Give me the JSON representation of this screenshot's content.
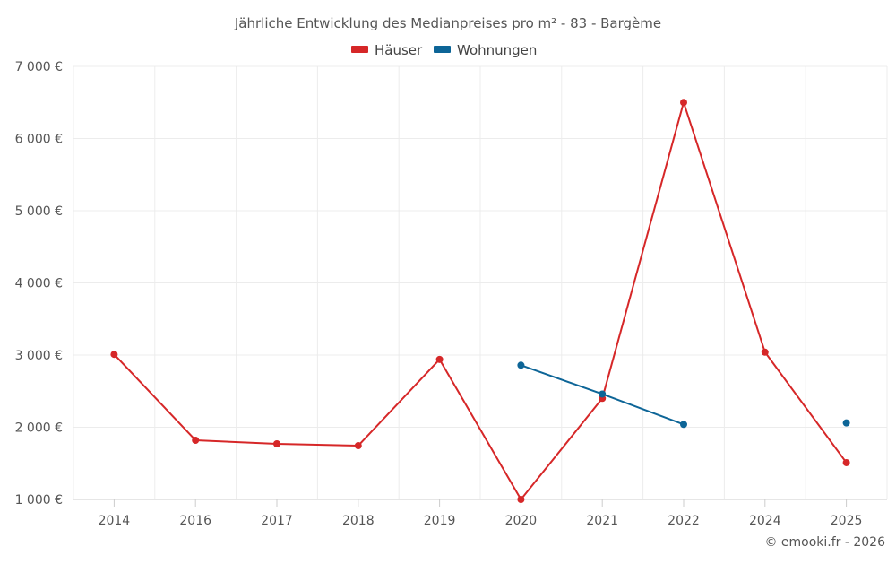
{
  "chart_data": {
    "type": "line",
    "title": "Jährliche Entwicklung des Medianpreises pro m² - 83 - Bargème",
    "categories": [
      "2014",
      "2016",
      "2017",
      "2018",
      "2019",
      "2020",
      "2021",
      "2022",
      "2024",
      "2025"
    ],
    "series": [
      {
        "name": "Häuser",
        "color": "#d62728",
        "values": [
          3010,
          1820,
          1770,
          1745,
          2940,
          1000,
          2400,
          6500,
          3040,
          1510
        ]
      },
      {
        "name": "Wohnungen",
        "color": "#0d6597",
        "values": [
          null,
          null,
          null,
          null,
          null,
          2860,
          2460,
          2040,
          null,
          2060
        ]
      }
    ],
    "ylim": [
      1000,
      7000
    ],
    "y_ticks": [
      1000,
      2000,
      3000,
      4000,
      5000,
      6000,
      7000
    ],
    "y_tick_labels": [
      "1 000 €",
      "2 000 €",
      "3 000 €",
      "4 000 €",
      "5 000 €",
      "6 000 €",
      "7 000 €"
    ],
    "legend_position": "top-center",
    "grid": true,
    "credit": "© emooki.fr - 2026"
  }
}
